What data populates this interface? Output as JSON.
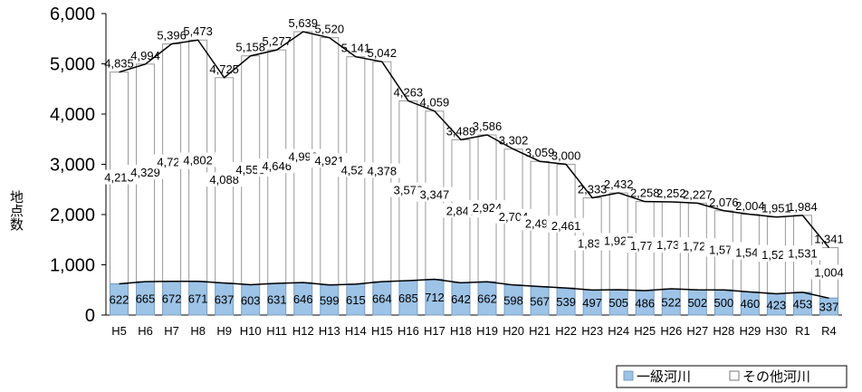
{
  "chart_data": {
    "type": "bar",
    "stacked": true,
    "categories": [
      "H5",
      "H6",
      "H7",
      "H8",
      "H9",
      "H10",
      "H11",
      "H12",
      "H13",
      "H14",
      "H15",
      "H16",
      "H17",
      "H18",
      "H19",
      "H20",
      "H21",
      "H22",
      "H23",
      "H24",
      "H25",
      "H26",
      "H27",
      "H28",
      "H29",
      "H30",
      "R1",
      "R4"
    ],
    "series": [
      {
        "name": "一級河川",
        "color": "#9DC3E6",
        "values": [
          622,
          665,
          672,
          671,
          637,
          603,
          631,
          646,
          599,
          615,
          664,
          685,
          712,
          642,
          662,
          598,
          567,
          539,
          497,
          505,
          486,
          522,
          502,
          500,
          460,
          423,
          453,
          337
        ]
      },
      {
        "name": "その他河川",
        "color": "#ffffff",
        "values": [
          4213,
          4329,
          4724,
          4802,
          4088,
          4555,
          4646,
          4993,
          4921,
          4526,
          4378,
          3578,
          3347,
          2847,
          2924,
          2704,
          2492,
          2461,
          1836,
          1927,
          1772,
          1730,
          1725,
          1576,
          1544,
          1528,
          1531,
          1004
        ]
      }
    ],
    "totals": [
      4835,
      4994,
      5396,
      5473,
      4725,
      5158,
      5277,
      5639,
      5520,
      5141,
      5042,
      4263,
      4059,
      3489,
      3586,
      3302,
      3059,
      3000,
      2333,
      2432,
      2258,
      2252,
      2227,
      2076,
      2004,
      1951,
      1984,
      1341
    ],
    "ylabel": "地点数",
    "yticks": [
      "0",
      "1,000",
      "2,000",
      "3,000",
      "4,000",
      "5,000",
      "6,000"
    ],
    "ylim": [
      0,
      6000
    ],
    "grid": false,
    "legend_position": "bottom-right"
  }
}
